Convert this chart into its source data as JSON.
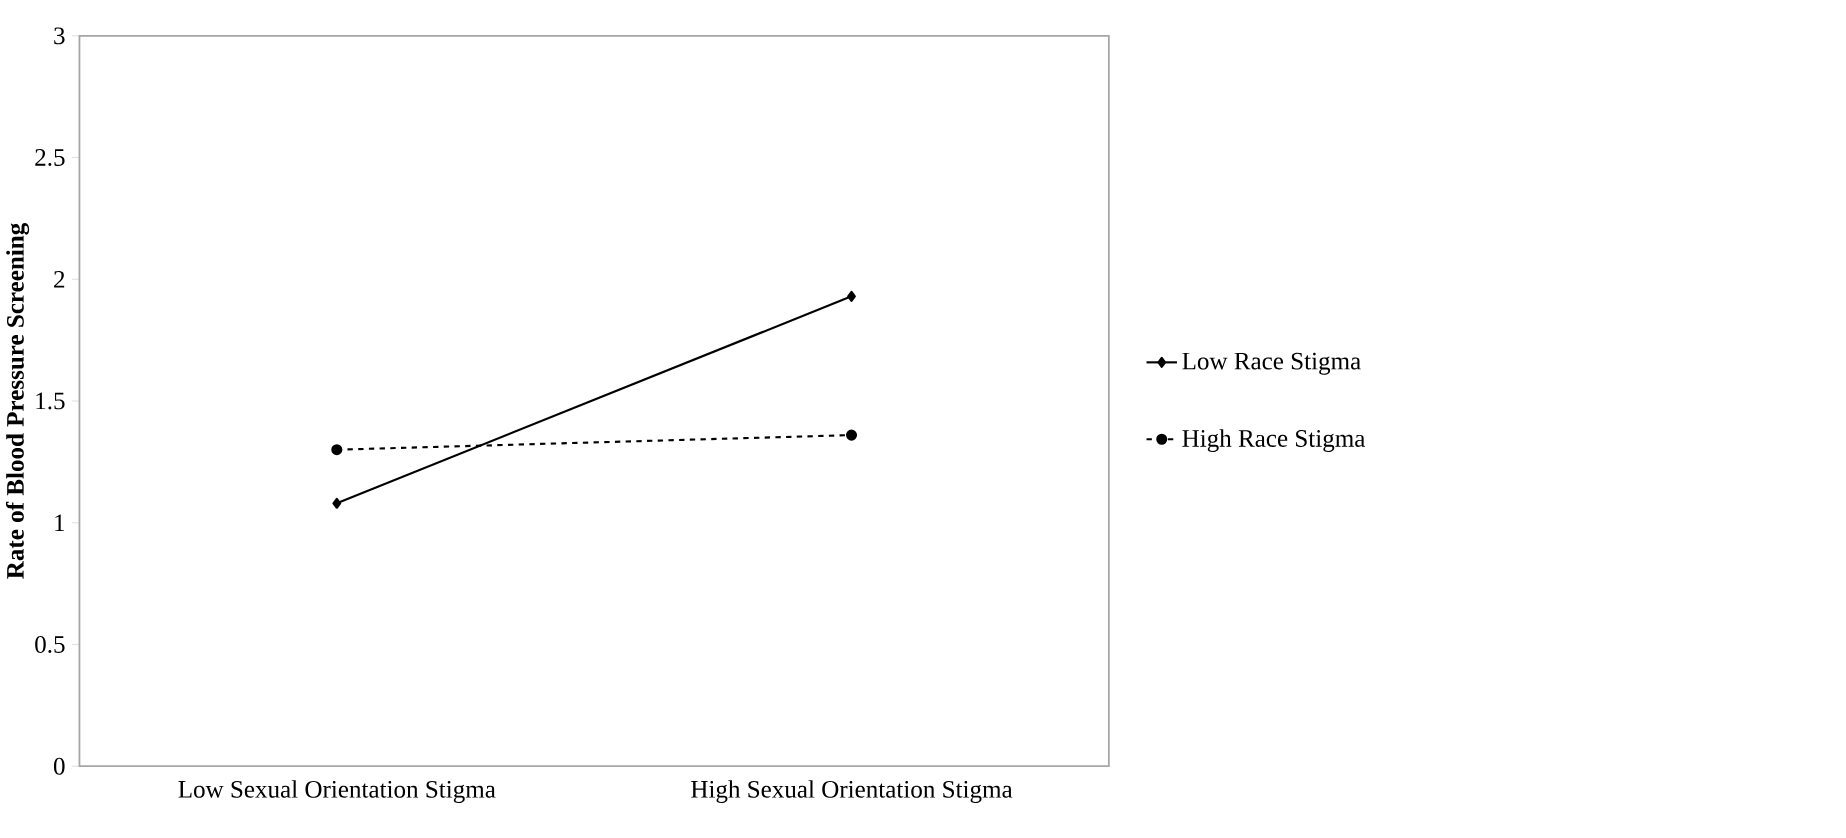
{
  "chart_data": {
    "type": "line",
    "ylabel": "Rate of Blood Pressure Screening",
    "categories": [
      "Low Sexual Orientation Stigma",
      "High Sexual Orientation Stigma"
    ],
    "series": [
      {
        "name": "Low Race Stigma",
        "color": "#000000",
        "values": [
          1.08,
          1.93
        ],
        "marker": "diamond",
        "line_style": "solid"
      },
      {
        "name": "High Race Stigma",
        "color": "#000000",
        "values": [
          1.3,
          1.36
        ],
        "marker": "circle",
        "line_style": "dashed"
      }
    ],
    "ylim": [
      0,
      3
    ],
    "yticks": [
      0,
      0.5,
      1,
      1.5,
      2,
      2.5,
      3
    ],
    "grid": false,
    "legend": "right"
  }
}
